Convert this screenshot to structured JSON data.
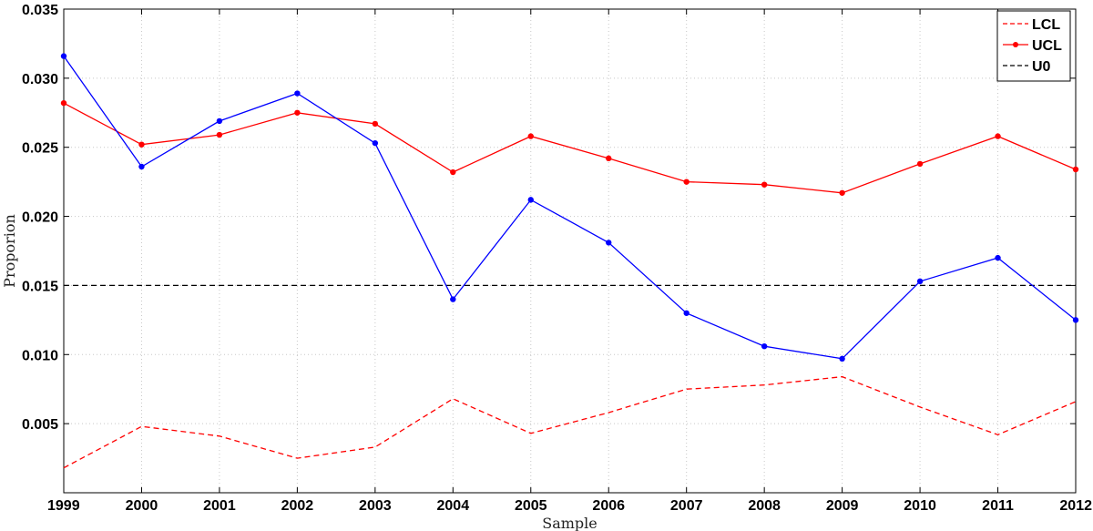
{
  "chart_data": {
    "type": "line",
    "title": "",
    "xlabel": "Sample",
    "ylabel": "Proporion",
    "x": [
      1999,
      2000,
      2001,
      2002,
      2003,
      2004,
      2005,
      2006,
      2007,
      2008,
      2009,
      2010,
      2011,
      2012
    ],
    "xlim": [
      1999,
      2012
    ],
    "ylim": [
      0,
      0.035
    ],
    "yticks": [
      "0.005",
      "0.010",
      "0.015",
      "0.020",
      "0.025",
      "0.030",
      "0.035"
    ],
    "yticks_values": [
      0.005,
      0.01,
      0.015,
      0.02,
      0.025,
      0.03,
      0.035
    ],
    "grid": true,
    "legend_position": "top-right",
    "series": [
      {
        "name": "LCL",
        "color": "#ff0000",
        "style": "dashed",
        "marker": "none",
        "values": [
          0.0018,
          0.0048,
          0.0041,
          0.0025,
          0.0033,
          0.0068,
          0.0043,
          0.0058,
          0.0075,
          0.0078,
          0.0084,
          0.0062,
          0.0042,
          0.0066
        ]
      },
      {
        "name": "UCL",
        "color": "#ff0000",
        "style": "solid",
        "marker": "dot",
        "values": [
          0.0282,
          0.0252,
          0.0259,
          0.0275,
          0.0267,
          0.0232,
          0.0258,
          0.0242,
          0.0225,
          0.0223,
          0.0217,
          0.0238,
          0.0258,
          0.0234
        ]
      },
      {
        "name": "U0",
        "color": "#000000",
        "style": "dashed",
        "marker": "none",
        "values": [
          0.015,
          0.015,
          0.015,
          0.015,
          0.015,
          0.015,
          0.015,
          0.015,
          0.015,
          0.015,
          0.015,
          0.015,
          0.015,
          0.015
        ]
      },
      {
        "legend": false,
        "color": "#0000ff",
        "style": "solid",
        "marker": "dot",
        "values": [
          0.0316,
          0.0236,
          0.0269,
          0.0289,
          0.0253,
          0.014,
          0.0212,
          0.0181,
          0.013,
          0.0106,
          0.0097,
          0.0153,
          0.017,
          0.0125
        ]
      }
    ]
  }
}
